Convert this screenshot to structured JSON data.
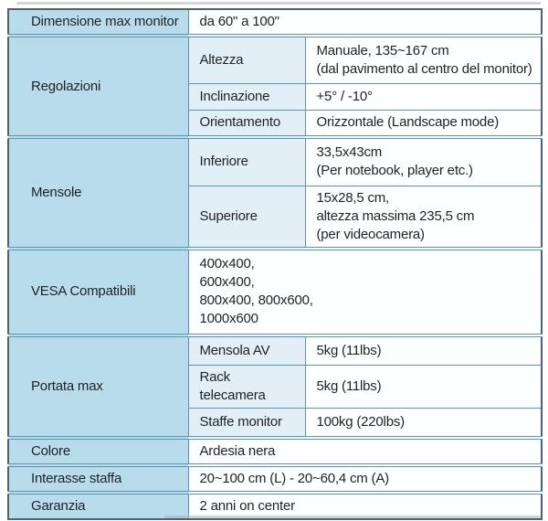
{
  "colors": {
    "label_bg": "#b9dcec",
    "sub_bg": "#e2eff6",
    "value_bg": "#fdfeff",
    "grid_line": "#5c93af",
    "outer_border": "#4a6472",
    "text_color": "#1f2224",
    "artifact_gray": "#a9b0b3"
  },
  "spec_table": {
    "rows": [
      {
        "label": "Dimensione max monitor",
        "value": "da 60\" a 100\""
      },
      {
        "label": "Regolazioni",
        "subs": [
          {
            "name": "Altezza",
            "value": "Manuale, 135~167 cm\n(dal pavimento al centro del monitor)"
          },
          {
            "name": "Inclinazione",
            "value": "+5° / -10°"
          },
          {
            "name": "Orientamento",
            "value": "Orizzontale (Landscape mode)"
          }
        ]
      },
      {
        "label": "Mensole",
        "subs": [
          {
            "name": "Inferiore",
            "value": "33,5x43cm\n(Per notebook, player etc.)"
          },
          {
            "name": "Superiore",
            "value": "15x28,5 cm,\naltezza massima 235,5 cm\n(per videocamera)"
          }
        ]
      },
      {
        "label": "VESA Compatibili",
        "value": "400x400,\n600x400,\n800x400, 800x600,\n1000x600"
      },
      {
        "label": "Portata max",
        "subs": [
          {
            "name": "Mensola AV",
            "value": "5kg (11lbs)"
          },
          {
            "name": "Rack telecamera",
            "value": "5kg (11lbs)"
          },
          {
            "name": "Staffe monitor",
            "value": "100kg (220lbs)"
          }
        ]
      },
      {
        "label": "Colore",
        "value": "Ardesia nera"
      },
      {
        "label": "Interasse staffa",
        "value": "20~100 cm (L) - 20~60,4 cm (A)"
      },
      {
        "label": "Garanzia",
        "value": "2 anni on center"
      }
    ]
  }
}
